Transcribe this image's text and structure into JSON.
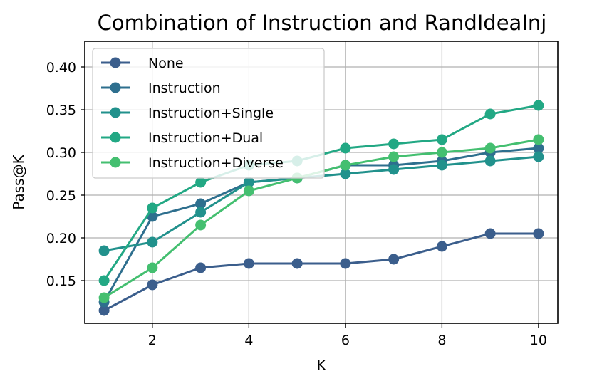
{
  "chart_data": {
    "type": "line",
    "title": "Combination of Instruction and RandIdeaInj",
    "xlabel": "K",
    "ylabel": "Pass@K",
    "xlim": [
      0.6,
      10.4
    ],
    "ylim": [
      0.1,
      0.43
    ],
    "x_ticks": [
      2,
      4,
      6,
      8,
      10
    ],
    "y_ticks": [
      0.15,
      0.2,
      0.25,
      0.3,
      0.35,
      0.4
    ],
    "y_tick_labels": [
      "0.15",
      "0.20",
      "0.25",
      "0.30",
      "0.35",
      "0.40"
    ],
    "grid": true,
    "legend_position": "upper-left",
    "x": [
      1,
      2,
      3,
      4,
      5,
      6,
      7,
      8,
      9,
      10
    ],
    "series": [
      {
        "name": "None",
        "color": "#3b5e8c",
        "values": [
          0.115,
          0.145,
          0.165,
          0.17,
          0.17,
          0.17,
          0.175,
          0.19,
          0.205,
          0.205
        ]
      },
      {
        "name": "Instruction",
        "color": "#2e6f8e",
        "values": [
          0.125,
          0.225,
          0.24,
          0.265,
          0.27,
          0.285,
          0.285,
          0.29,
          0.3,
          0.305
        ]
      },
      {
        "name": "Instruction+Single",
        "color": "#21918c",
        "values": [
          0.185,
          0.195,
          0.23,
          0.265,
          0.27,
          0.275,
          0.28,
          0.285,
          0.29,
          0.295
        ]
      },
      {
        "name": "Instruction+Dual",
        "color": "#22a884",
        "values": [
          0.15,
          0.235,
          0.265,
          0.285,
          0.29,
          0.305,
          0.31,
          0.315,
          0.345,
          0.355
        ]
      },
      {
        "name": "Instruction+Diverse",
        "color": "#44bf70",
        "values": [
          0.13,
          0.165,
          0.215,
          0.255,
          0.27,
          0.285,
          0.295,
          0.3,
          0.305,
          0.315
        ]
      }
    ]
  }
}
